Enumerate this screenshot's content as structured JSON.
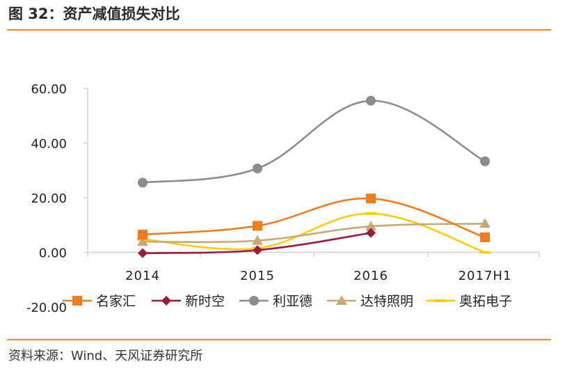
{
  "header": {
    "title": "图 32：资产减值损失对比"
  },
  "footer": {
    "source": "资料来源：Wind、天风证券研究所"
  },
  "chart_data": {
    "type": "line",
    "title": "图 32：资产减值损失对比",
    "xlabel": "",
    "ylabel": "",
    "ylim": [
      -20,
      60
    ],
    "yticks": [
      60,
      40,
      20,
      0,
      -20
    ],
    "ytick_labels": [
      "60.00",
      "40.00",
      "20.00",
      "0.00",
      "-20.00"
    ],
    "categories": [
      "2014",
      "2015",
      "2016",
      "2017H1"
    ],
    "grid": false,
    "legend_position": "bottom",
    "series": [
      {
        "name": "名家汇",
        "color": "#ed7d1f",
        "marker": "square",
        "values": [
          6.5,
          9.7,
          19.7,
          5.5
        ]
      },
      {
        "name": "新时空",
        "color": "#9b1b3a",
        "marker": "diamond",
        "values": [
          -0.3,
          0.8,
          7.1,
          null
        ]
      },
      {
        "name": "利亚德",
        "color": "#8c8c8c",
        "marker": "circle",
        "values": [
          25.5,
          30.7,
          55.5,
          33.3
        ]
      },
      {
        "name": "达特照明",
        "color": "#c9a878",
        "marker": "triangle",
        "values": [
          3.9,
          4.3,
          9.5,
          10.5
        ]
      },
      {
        "name": "奥拓电子",
        "color": "#f5cf0f",
        "marker": "dash",
        "values": [
          4.8,
          1.5,
          14.2,
          0.0
        ]
      }
    ]
  }
}
